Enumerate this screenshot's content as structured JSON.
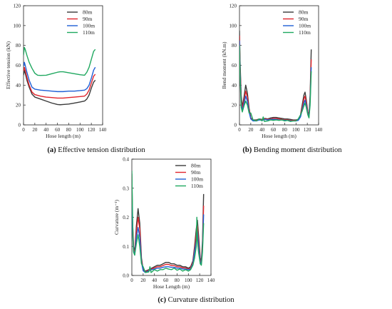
{
  "colors": {
    "80m": "#3a3a3a",
    "90m": "#e0242c",
    "100m": "#1f5fd6",
    "110m": "#20a860"
  },
  "chart_data": [
    {
      "type": "line",
      "caption_label": "(a)",
      "caption_text": "Effective tension distribution",
      "xlabel": "Hose length (m)",
      "ylabel": "Effective tension (kN)",
      "xlim": [
        0,
        140
      ],
      "ylim": [
        0,
        120
      ],
      "xticks": [
        "0",
        "20",
        "40",
        "60",
        "80",
        "100",
        "120",
        "140"
      ],
      "yticks": [
        "0",
        "20",
        "40",
        "60",
        "80",
        "100",
        "120"
      ],
      "legend_position": "top-right",
      "series": [
        {
          "name": "80m",
          "x": [
            0,
            1.5,
            3,
            6,
            10,
            15,
            20,
            30,
            40,
            50,
            60,
            65,
            70,
            80,
            90,
            100,
            108,
            112,
            116,
            120,
            124,
            127
          ],
          "y": [
            50,
            55,
            52,
            45,
            38,
            31,
            28,
            26,
            24,
            22,
            20.5,
            20.3,
            20.5,
            21,
            22,
            23,
            24,
            26,
            30,
            37,
            43,
            45
          ]
        },
        {
          "name": "90m",
          "x": [
            0,
            1.5,
            3,
            6,
            10,
            15,
            20,
            30,
            40,
            50,
            60,
            65,
            70,
            80,
            90,
            100,
            108,
            112,
            116,
            120,
            124,
            127
          ],
          "y": [
            54,
            58,
            55,
            48,
            40,
            33,
            30.5,
            29,
            28,
            27.5,
            27,
            27,
            27,
            27.5,
            28,
            28.5,
            29,
            31,
            35,
            42,
            49,
            51
          ]
        },
        {
          "name": "100m",
          "x": [
            0,
            1.5,
            3,
            6,
            10,
            15,
            20,
            30,
            40,
            50,
            60,
            65,
            70,
            80,
            90,
            100,
            108,
            112,
            116,
            120,
            124,
            127
          ],
          "y": [
            59,
            63,
            60,
            53,
            45,
            38,
            36,
            35,
            34.5,
            34,
            33.5,
            33.5,
            33.5,
            34,
            34,
            34.5,
            35,
            36.5,
            40,
            47,
            55,
            58
          ]
        },
        {
          "name": "110m",
          "x": [
            0,
            1.5,
            3,
            6,
            10,
            15,
            20,
            25,
            30,
            40,
            50,
            60,
            65,
            70,
            80,
            90,
            100,
            108,
            112,
            116,
            120,
            124,
            127
          ],
          "y": [
            70,
            78,
            76,
            70,
            63,
            57,
            52,
            50,
            49.8,
            50,
            51.5,
            53,
            53.5,
            53.5,
            52.5,
            51.5,
            50.5,
            50,
            53,
            58,
            66,
            74,
            76
          ]
        }
      ]
    },
    {
      "type": "line",
      "caption_label": "(b)",
      "caption_text": "Bending moment distribution",
      "xlabel": "Hose length (m)",
      "ylabel": "Bend moment (kN.m)",
      "xlim": [
        0,
        140
      ],
      "ylim": [
        0,
        120
      ],
      "xticks": [
        "0",
        "20",
        "40",
        "60",
        "80",
        "100",
        "120",
        "140"
      ],
      "yticks": [
        "0",
        "20",
        "40",
        "60",
        "80",
        "100",
        "120"
      ],
      "legend_position": "top-right",
      "series": [
        {
          "name": "80m",
          "x": [
            0,
            1,
            3,
            5,
            8,
            11,
            14,
            17,
            20,
            24,
            30,
            35,
            40,
            45,
            50,
            55,
            60,
            65,
            70,
            75,
            80,
            85,
            90,
            95,
            100,
            104,
            108,
            111,
            114,
            116,
            118,
            121,
            123,
            125,
            127
          ],
          "y": [
            95,
            65,
            30,
            18,
            28,
            40,
            32,
            17,
            7,
            5,
            5,
            6,
            5.5,
            6.5,
            6,
            7,
            7.5,
            7.5,
            7,
            6.5,
            6,
            6,
            5.5,
            5,
            5,
            5.5,
            10,
            20,
            30,
            33,
            26,
            13,
            10,
            30,
            76
          ]
        },
        {
          "name": "90m",
          "x": [
            0,
            1,
            3,
            5,
            8,
            11,
            14,
            17,
            20,
            24,
            30,
            35,
            40,
            45,
            50,
            55,
            60,
            65,
            70,
            75,
            80,
            85,
            90,
            95,
            100,
            104,
            108,
            111,
            114,
            116,
            118,
            121,
            123,
            125,
            127
          ],
          "y": [
            90,
            60,
            26,
            16,
            24,
            34,
            28,
            15,
            6.5,
            4.5,
            4.5,
            5.5,
            5,
            6,
            5.5,
            6,
            6.5,
            6.5,
            6,
            5.5,
            5,
            5,
            4.5,
            4.5,
            4.5,
            5,
            9,
            17,
            26,
            29,
            23,
            12,
            9,
            27,
            66
          ]
        },
        {
          "name": "100m",
          "x": [
            0,
            1,
            3,
            5,
            8,
            11,
            14,
            17,
            20,
            24,
            30,
            35,
            40,
            45,
            50,
            55,
            60,
            65,
            70,
            75,
            80,
            85,
            90,
            95,
            100,
            104,
            108,
            111,
            114,
            116,
            118,
            121,
            123,
            125,
            127
          ],
          "y": [
            85,
            55,
            22,
            14,
            21,
            29,
            24,
            13,
            6,
            4,
            4,
            5,
            4.5,
            5.5,
            5,
            5.5,
            5.5,
            5.5,
            5,
            5,
            4.5,
            4.5,
            4,
            4,
            4,
            4.5,
            8,
            15,
            22,
            25,
            20,
            11,
            8,
            24,
            58
          ]
        },
        {
          "name": "110m",
          "x": [
            0,
            1,
            3,
            5,
            8,
            11,
            14,
            17,
            20,
            24,
            30,
            35,
            40,
            42,
            44,
            50,
            55,
            60,
            65,
            70,
            75,
            80,
            85,
            90,
            95,
            100,
            104,
            108,
            111,
            114,
            116,
            118,
            121,
            123,
            125,
            127
          ],
          "y": [
            80,
            50,
            18,
            13,
            19,
            24,
            20,
            12,
            12,
            5,
            4,
            6,
            4,
            8,
            3.5,
            4,
            5,
            4.5,
            5,
            4.5,
            5,
            4,
            4.5,
            3.5,
            4,
            4,
            6,
            10,
            14,
            19,
            22,
            18,
            10,
            7,
            20,
            54
          ]
        }
      ]
    },
    {
      "type": "line",
      "caption_label": "(c)",
      "caption_text": "Curvature distribution",
      "xlabel": "Hose Length (m)",
      "ylabel": "Curvature (m⁻¹)",
      "xlim": [
        0,
        140
      ],
      "ylim": [
        0,
        0.4
      ],
      "xticks": [
        "0",
        "20",
        "40",
        "60",
        "80",
        "100",
        "120",
        "140"
      ],
      "yticks": [
        "0.0",
        "0.1",
        "0.2",
        "0.3",
        "0.4"
      ],
      "legend_position": "top-right",
      "series": [
        {
          "name": "80m",
          "x": [
            0,
            1,
            3,
            5,
            8,
            11,
            14,
            17,
            20,
            24,
            30,
            35,
            40,
            45,
            50,
            55,
            60,
            65,
            70,
            75,
            80,
            85,
            90,
            95,
            100,
            104,
            108,
            111,
            114,
            116,
            118,
            121,
            123,
            125,
            127
          ],
          "y": [
            0.35,
            0.2,
            0.1,
            0.08,
            0.17,
            0.23,
            0.18,
            0.06,
            0.02,
            0.015,
            0.02,
            0.025,
            0.03,
            0.035,
            0.035,
            0.04,
            0.045,
            0.045,
            0.04,
            0.04,
            0.035,
            0.035,
            0.03,
            0.03,
            0.025,
            0.03,
            0.05,
            0.1,
            0.16,
            0.19,
            0.14,
            0.06,
            0.05,
            0.12,
            0.28
          ]
        },
        {
          "name": "90m",
          "x": [
            0,
            1,
            3,
            5,
            8,
            11,
            14,
            17,
            20,
            24,
            30,
            35,
            40,
            45,
            50,
            55,
            60,
            65,
            70,
            75,
            80,
            85,
            90,
            95,
            100,
            104,
            108,
            111,
            114,
            116,
            118,
            121,
            123,
            125,
            127
          ],
          "y": [
            0.34,
            0.18,
            0.09,
            0.075,
            0.15,
            0.2,
            0.16,
            0.05,
            0.018,
            0.012,
            0.018,
            0.022,
            0.026,
            0.03,
            0.03,
            0.034,
            0.038,
            0.038,
            0.034,
            0.034,
            0.03,
            0.03,
            0.026,
            0.026,
            0.022,
            0.026,
            0.045,
            0.09,
            0.14,
            0.17,
            0.12,
            0.05,
            0.045,
            0.1,
            0.24
          ]
        },
        {
          "name": "100m",
          "x": [
            0,
            1,
            3,
            5,
            8,
            11,
            14,
            17,
            20,
            24,
            30,
            35,
            40,
            45,
            50,
            55,
            60,
            65,
            70,
            75,
            80,
            85,
            90,
            95,
            100,
            104,
            108,
            111,
            114,
            116,
            118,
            121,
            123,
            125,
            127
          ],
          "y": [
            0.33,
            0.16,
            0.085,
            0.07,
            0.13,
            0.165,
            0.13,
            0.045,
            0.016,
            0.01,
            0.016,
            0.02,
            0.022,
            0.025,
            0.025,
            0.028,
            0.03,
            0.03,
            0.028,
            0.028,
            0.025,
            0.025,
            0.022,
            0.022,
            0.02,
            0.022,
            0.04,
            0.08,
            0.12,
            0.15,
            0.1,
            0.045,
            0.04,
            0.09,
            0.21
          ]
        },
        {
          "name": "110m",
          "x": [
            0,
            1,
            2,
            3,
            5,
            8,
            11,
            14,
            17,
            20,
            24,
            30,
            32,
            34,
            40,
            45,
            50,
            55,
            60,
            65,
            70,
            75,
            80,
            85,
            90,
            95,
            100,
            104,
            108,
            111,
            114,
            115,
            116,
            118,
            121,
            123,
            125,
            127
          ],
          "y": [
            0.36,
            0.24,
            0.12,
            0.08,
            0.07,
            0.11,
            0.14,
            0.1,
            0.04,
            0.03,
            0.01,
            0.012,
            0.03,
            0.01,
            0.02,
            0.015,
            0.02,
            0.02,
            0.025,
            0.022,
            0.02,
            0.025,
            0.018,
            0.022,
            0.015,
            0.02,
            0.015,
            0.02,
            0.035,
            0.06,
            0.1,
            0.2,
            0.12,
            0.08,
            0.04,
            0.035,
            0.08,
            0.18
          ]
        }
      ]
    }
  ]
}
